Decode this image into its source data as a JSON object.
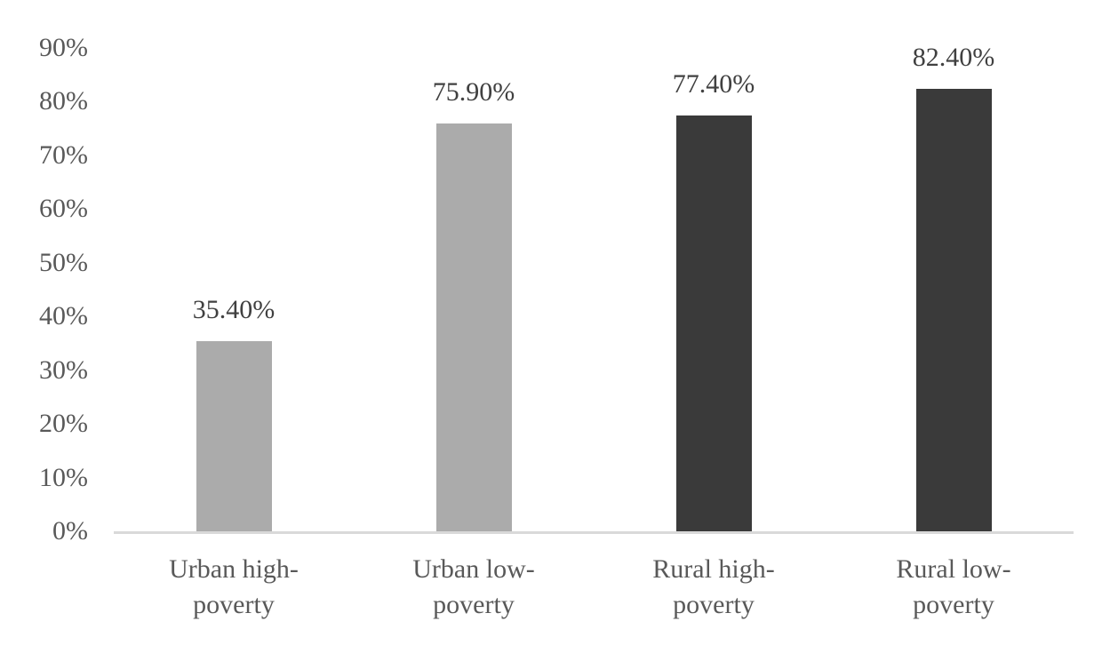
{
  "chart_data": {
    "type": "bar",
    "title": "",
    "xlabel": "",
    "ylabel": "",
    "categories": [
      "Urban high-poverty",
      "Urban low-poverty",
      "Rural high-poverty",
      "Rural low-poverty"
    ],
    "category_lines": [
      [
        "Urban high-",
        "poverty"
      ],
      [
        "Urban low-",
        "poverty"
      ],
      [
        "Rural high-",
        "poverty"
      ],
      [
        "Rural low-",
        "poverty"
      ]
    ],
    "values": [
      35.4,
      75.9,
      77.4,
      82.4
    ],
    "value_labels": [
      "35.40%",
      "75.90%",
      "77.40%",
      "82.40%"
    ],
    "bar_colors": [
      "#ababab",
      "#ababab",
      "#3a3a3a",
      "#3a3a3a"
    ],
    "ylim": [
      0,
      90
    ],
    "yticks": [
      0,
      10,
      20,
      30,
      40,
      50,
      60,
      70,
      80,
      90
    ],
    "ytick_labels": [
      "0%",
      "10%",
      "20%",
      "30%",
      "40%",
      "50%",
      "60%",
      "70%",
      "80%",
      "90%"
    ],
    "grid": false,
    "legend": false,
    "axis_line_color": "#d9d9d9",
    "tick_text_color": "#595959",
    "value_label_color": "#404040",
    "background_color": "#ffffff"
  }
}
